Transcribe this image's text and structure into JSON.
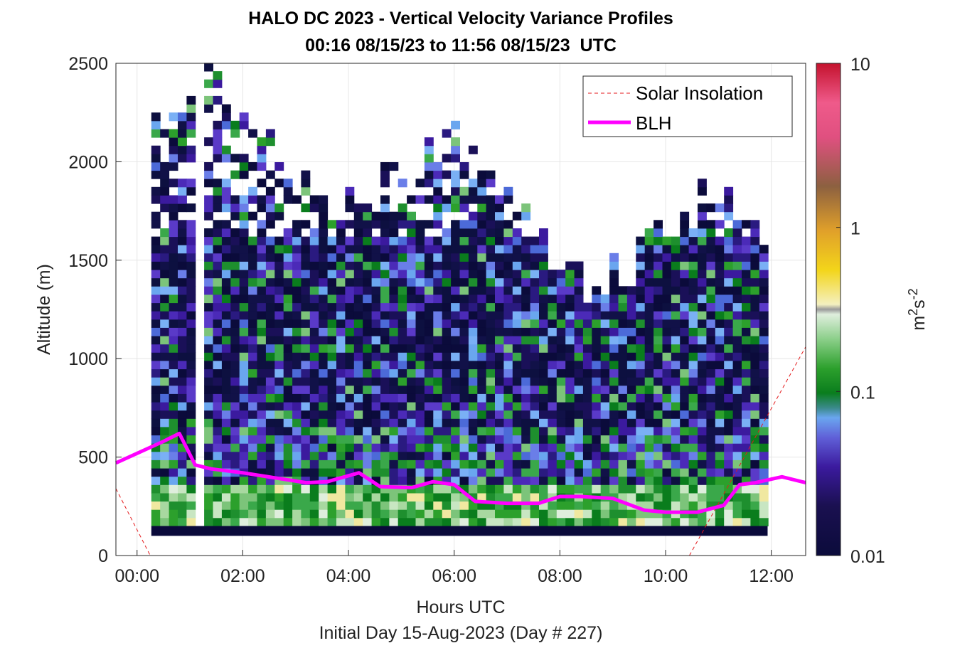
{
  "chart_data": {
    "type": "heatmap",
    "title": "HALO DC 2023 - Vertical Velocity Variance Profiles",
    "subtitle": "00:16 08/15/23 to 11:56 08/15/23  UTC",
    "xlabel": "Hours UTC",
    "xlabel2": "Initial Day 15-Aug-2023 (Day # 227)",
    "ylabel": "Altitude (m)",
    "xlim": [
      -0.4,
      12.65
    ],
    "ylim": [
      0,
      2500
    ],
    "x_ticks": [
      0,
      2,
      4,
      6,
      8,
      10,
      12
    ],
    "x_tick_labels": [
      "00:00",
      "02:00",
      "04:00",
      "06:00",
      "08:00",
      "10:00",
      "12:00"
    ],
    "y_ticks": [
      0,
      500,
      1000,
      1500,
      2000,
      2500
    ],
    "y_tick_labels": [
      "0",
      "500",
      "1000",
      "1500",
      "2000",
      "2500"
    ],
    "grid": true,
    "legend_position": "top-right",
    "colorbar": {
      "label": "m²s⁻²",
      "scale": "log",
      "range": [
        0.01,
        10
      ],
      "ticks": [
        0.01,
        0.1,
        1,
        10
      ],
      "tick_labels": [
        "0.01",
        "0.1",
        "1",
        "10"
      ]
    },
    "heatmap_time_range": [
      "00:16",
      "11:56"
    ],
    "series": [
      {
        "name": "Solar Insolation",
        "style": "dashed",
        "color": "#e41a1c",
        "x": [
          -0.4,
          0.25,
          10.45,
          12.65
        ],
        "y": [
          340,
          0,
          0,
          1060
        ]
      },
      {
        "name": "BLH",
        "style": "solid",
        "color": "#ff00ff",
        "x": [
          -0.4,
          0.5,
          0.8,
          1.1,
          1.4,
          2.0,
          2.6,
          3.2,
          3.6,
          4.2,
          4.6,
          5.2,
          5.6,
          6.0,
          6.4,
          7.0,
          7.6,
          8.0,
          8.4,
          9.0,
          9.6,
          10.0,
          10.6,
          11.1,
          11.4,
          11.7,
          12.2,
          12.65
        ],
        "y": [
          470,
          580,
          620,
          460,
          440,
          420,
          395,
          370,
          375,
          420,
          350,
          345,
          375,
          360,
          275,
          265,
          265,
          300,
          300,
          290,
          230,
          220,
          220,
          255,
          360,
          370,
          400,
          370
        ]
      }
    ],
    "colors": {
      "ground_band": "#0a0a3a",
      "colormap_low": "#0b0b3b",
      "colormap_high": "#c4122d"
    }
  }
}
